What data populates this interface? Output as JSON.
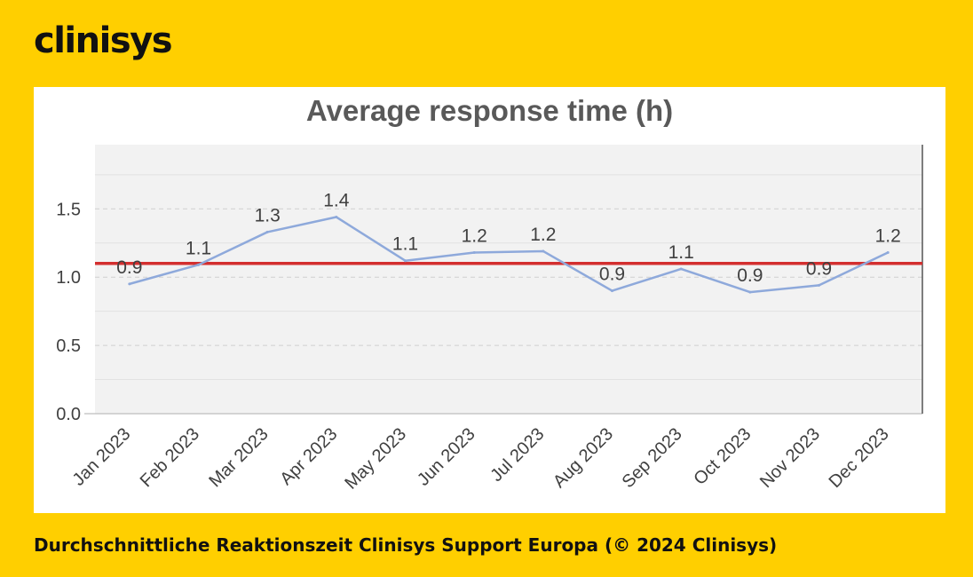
{
  "brand": {
    "logo_text": "clinisys"
  },
  "caption": "Durchschnittliche Reaktionszeit Clinisys Support Europa (© 2024 Clinisys)",
  "colors": {
    "background": "#FFCF00",
    "series": "#8EA9DB",
    "reference_line": "#D32F2F",
    "plot_bg": "#F2F2F2"
  },
  "chart_data": {
    "type": "line",
    "title": "Average response time (h)",
    "categories": [
      "Jan 2023",
      "Feb 2023",
      "Mar 2023",
      "Apr 2023",
      "May 2023",
      "Jun 2023",
      "Jul 2023",
      "Aug 2023",
      "Sep 2023",
      "Oct 2023",
      "Nov 2023",
      "Dec 2023"
    ],
    "series": [
      {
        "values": [
          0.95,
          1.09,
          1.33,
          1.44,
          1.12,
          1.18,
          1.19,
          0.9,
          1.06,
          0.89,
          0.94,
          1.18
        ],
        "labels": [
          "0.9",
          "1.1",
          "1.3",
          "1.4",
          "1.1",
          "1.2",
          "1.2",
          "0.9",
          "1.1",
          "0.9",
          "0.9",
          "1.2"
        ]
      }
    ],
    "reference_line": 1.1,
    "yticks": [
      0.0,
      0.5,
      1.0,
      1.5
    ],
    "ytick_labels": [
      "0.0",
      "0.5",
      "1.0",
      "1.5"
    ],
    "ylim": [
      0,
      1.97
    ],
    "grid": true,
    "legend": "none"
  }
}
